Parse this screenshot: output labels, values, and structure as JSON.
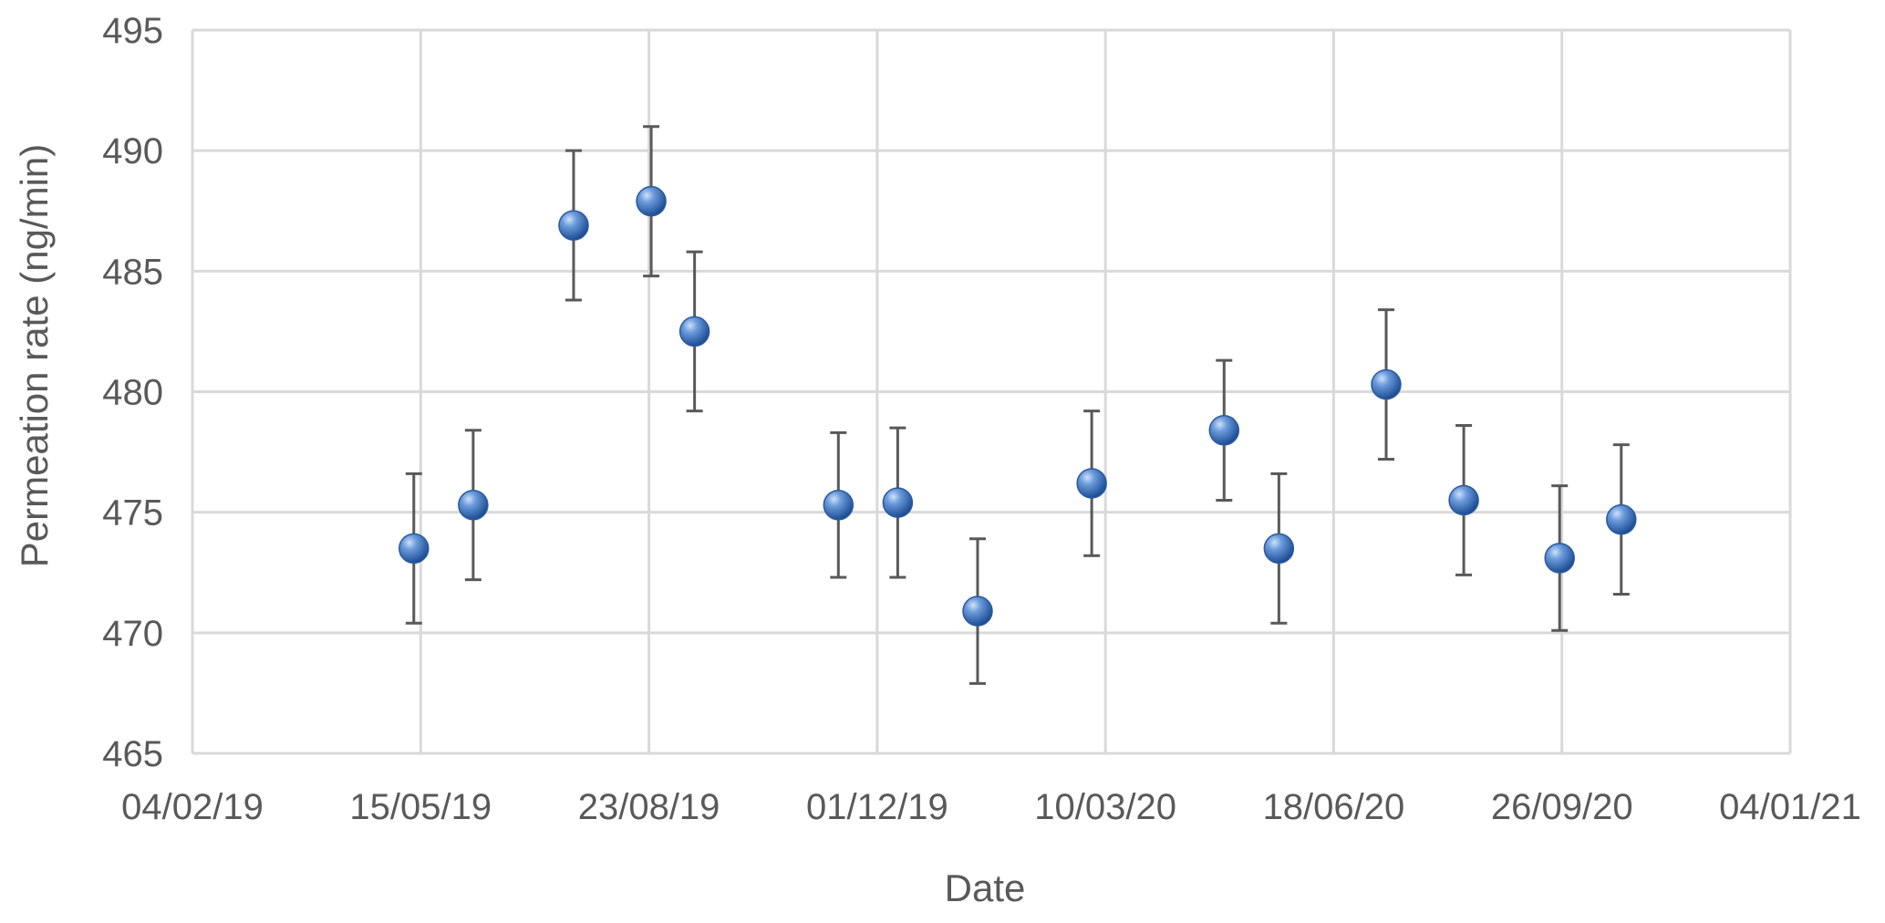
{
  "chart_data": {
    "type": "scatter",
    "title": "",
    "xlabel": "Date",
    "ylabel": "Permeation rate (ng/min)",
    "x_tick_labels": [
      "04/02/19",
      "15/05/19",
      "23/08/19",
      "01/12/19",
      "10/03/20",
      "18/06/20",
      "26/09/20",
      "04/01/21"
    ],
    "y_tick_labels": [
      "465",
      "470",
      "475",
      "480",
      "485",
      "490",
      "495"
    ],
    "xlim": [
      "2019-02-04",
      "2021-01-04"
    ],
    "ylim": [
      465,
      495
    ],
    "grid": true,
    "marker_color": "#3f78c4",
    "error_bar_color": "#595959",
    "series": [
      {
        "points": [
          {
            "x": "2019-05-12",
            "y": 473.5,
            "err": 3.1
          },
          {
            "x": "2019-06-07",
            "y": 475.3,
            "err": 3.1
          },
          {
            "x": "2019-07-21",
            "y": 486.9,
            "err": 3.1
          },
          {
            "x": "2019-08-24",
            "y": 487.9,
            "err": 3.1
          },
          {
            "x": "2019-09-12",
            "y": 482.5,
            "err": 3.3
          },
          {
            "x": "2019-11-14",
            "y": 475.3,
            "err": 3.0
          },
          {
            "x": "2019-12-10",
            "y": 475.4,
            "err": 3.1
          },
          {
            "x": "2020-01-14",
            "y": 470.9,
            "err": 3.0
          },
          {
            "x": "2020-03-04",
            "y": 476.2,
            "err": 3.0
          },
          {
            "x": "2020-05-01",
            "y": 478.4,
            "err": 2.9
          },
          {
            "x": "2020-05-25",
            "y": 473.5,
            "err": 3.1
          },
          {
            "x": "2020-07-11",
            "y": 480.3,
            "err": 3.1
          },
          {
            "x": "2020-08-14",
            "y": 475.5,
            "err": 3.1
          },
          {
            "x": "2020-09-25",
            "y": 473.1,
            "err": 3.0
          },
          {
            "x": "2020-10-22",
            "y": 474.7,
            "err": 3.1
          }
        ]
      }
    ]
  }
}
